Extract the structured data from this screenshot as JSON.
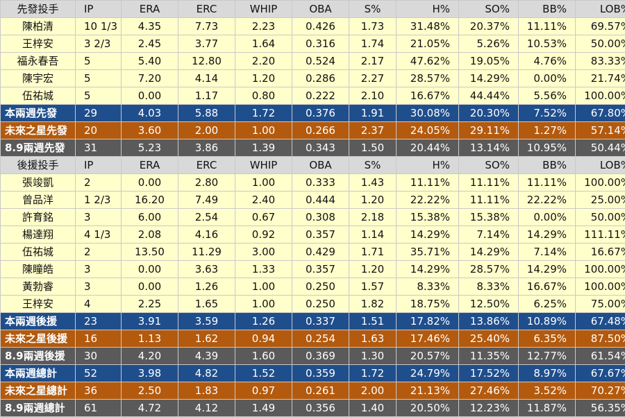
{
  "starters": {
    "headers": [
      "先發投手",
      "IP",
      "ERA",
      "ERC",
      "WHIP",
      "OBA",
      "S%",
      "H%",
      "SO%",
      "BB%",
      "LOB%"
    ],
    "rows": [
      [
        "陳柏清",
        "10 1/3",
        "4.35",
        "7.73",
        "2.23",
        "0.426",
        "1.73",
        "31.48%",
        "20.37%",
        "11.11%",
        "69.57%"
      ],
      [
        "王梓安",
        "3 2/3",
        "2.45",
        "3.77",
        "1.64",
        "0.316",
        "1.74",
        "21.05%",
        "5.26%",
        "10.53%",
        "50.00%"
      ],
      [
        "福永春吾",
        "5",
        "5.40",
        "12.80",
        "2.20",
        "0.524",
        "2.17",
        "47.62%",
        "19.05%",
        "4.76%",
        "83.33%"
      ],
      [
        "陳宇宏",
        "5",
        "7.20",
        "4.14",
        "1.20",
        "0.286",
        "2.27",
        "28.57%",
        "14.29%",
        "0.00%",
        "21.74%"
      ],
      [
        "伍祐城",
        "5",
        "0.00",
        "1.17",
        "0.80",
        "0.222",
        "2.10",
        "16.67%",
        "44.44%",
        "5.56%",
        "100.00%"
      ]
    ],
    "summaries": [
      [
        "本兩週先發",
        "29",
        "4.03",
        "5.88",
        "1.72",
        "0.376",
        "1.91",
        "30.08%",
        "20.30%",
        "7.52%",
        "67.80%"
      ],
      [
        "未來之星先發",
        "20",
        "3.60",
        "2.00",
        "1.00",
        "0.266",
        "2.37",
        "24.05%",
        "29.11%",
        "1.27%",
        "57.14%"
      ],
      [
        "8.9兩週先發",
        "31",
        "5.23",
        "3.86",
        "1.39",
        "0.343",
        "1.50",
        "20.44%",
        "13.14%",
        "10.95%",
        "50.44%"
      ]
    ]
  },
  "relievers": {
    "headers": [
      "後援投手",
      "IP",
      "ERA",
      "ERC",
      "WHIP",
      "OBA",
      "S%",
      "H%",
      "SO%",
      "BB%",
      "LOB%"
    ],
    "rows": [
      [
        "張竣凱",
        "2",
        "0.00",
        "2.80",
        "1.00",
        "0.333",
        "1.43",
        "11.11%",
        "11.11%",
        "11.11%",
        "100.00%"
      ],
      [
        "曾品洋",
        "1 2/3",
        "16.20",
        "7.49",
        "2.40",
        "0.444",
        "1.20",
        "22.22%",
        "11.11%",
        "22.22%",
        "25.00%"
      ],
      [
        "許育銘",
        "3",
        "6.00",
        "2.54",
        "0.67",
        "0.308",
        "2.18",
        "15.38%",
        "15.38%",
        "0.00%",
        "50.00%"
      ],
      [
        "楊達翔",
        "4 1/3",
        "2.08",
        "4.16",
        "0.92",
        "0.357",
        "1.14",
        "14.29%",
        "7.14%",
        "14.29%",
        "111.11%"
      ],
      [
        "伍祐城",
        "2",
        "13.50",
        "11.29",
        "3.00",
        "0.429",
        "1.71",
        "35.71%",
        "14.29%",
        "7.14%",
        "16.67%"
      ],
      [
        "陳瞳皓",
        "3",
        "0.00",
        "3.63",
        "1.33",
        "0.357",
        "1.20",
        "14.29%",
        "28.57%",
        "14.29%",
        "100.00%"
      ],
      [
        "黃勃睿",
        "3",
        "0.00",
        "1.26",
        "1.00",
        "0.250",
        "1.57",
        "8.33%",
        "8.33%",
        "16.67%",
        "100.00%"
      ],
      [
        "王梓安",
        "4",
        "2.25",
        "1.65",
        "1.00",
        "0.250",
        "1.82",
        "18.75%",
        "12.50%",
        "6.25%",
        "75.00%"
      ]
    ],
    "summaries": [
      [
        "本兩週後援",
        "23",
        "3.91",
        "3.59",
        "1.26",
        "0.337",
        "1.51",
        "17.82%",
        "13.86%",
        "10.89%",
        "67.48%"
      ],
      [
        "未來之星後援",
        "16",
        "1.13",
        "1.62",
        "0.94",
        "0.254",
        "1.63",
        "17.46%",
        "25.40%",
        "6.35%",
        "87.50%"
      ],
      [
        "8.9兩週後援",
        "30",
        "4.20",
        "4.39",
        "1.60",
        "0.369",
        "1.30",
        "20.57%",
        "11.35%",
        "12.77%",
        "61.54%"
      ]
    ]
  },
  "totals": [
    [
      "本兩週總計",
      "52",
      "3.98",
      "4.82",
      "1.52",
      "0.359",
      "1.72",
      "24.79%",
      "17.52%",
      "8.97%",
      "67.67%"
    ],
    [
      "未來之星總計",
      "36",
      "2.50",
      "1.83",
      "0.97",
      "0.261",
      "2.00",
      "21.13%",
      "27.46%",
      "3.52%",
      "70.27%"
    ],
    [
      "8.9兩週總計",
      "61",
      "4.72",
      "4.12",
      "1.49",
      "0.356",
      "1.40",
      "20.50%",
      "12.23%",
      "11.87%",
      "56.35%"
    ]
  ],
  "colors": {
    "header_bg": "#d9d9d9",
    "row_bg": "#ffffcc",
    "summary_blue": "#1f4e8c",
    "summary_orange": "#b35a0e",
    "summary_gray": "#5a5a5a"
  }
}
